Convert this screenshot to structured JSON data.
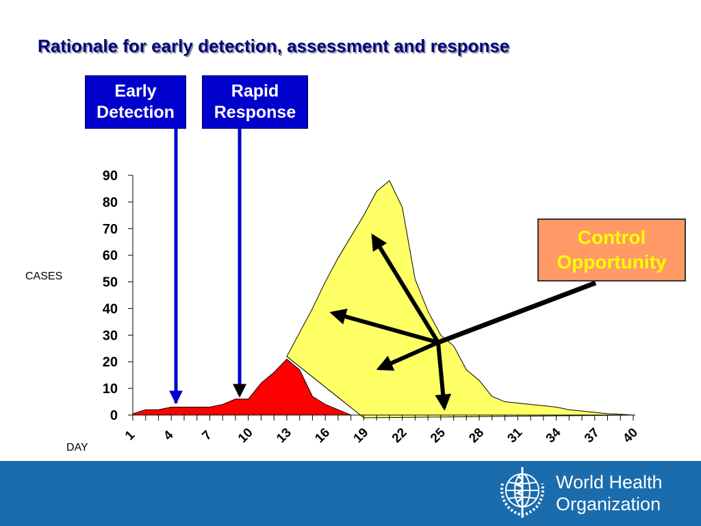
{
  "slide": {
    "title": "Rationale for early detection, assessment and response"
  },
  "callouts": {
    "early_detection": [
      "Early",
      "Detection"
    ],
    "rapid_response": [
      "Rapid",
      "Response"
    ],
    "control_opportunity": [
      "Control",
      "Opportunity"
    ]
  },
  "footer": {
    "org_name": [
      "World Health",
      "Organization"
    ],
    "bar_color": "#1a6cad"
  },
  "colors": {
    "title": "#000080",
    "red_area": "#ff0000",
    "yellow_area": "#ffff66",
    "blue_arrow": "#0000cc",
    "box_fill": "#0000cc",
    "control_box_fill": "#ff9966",
    "control_box_text": "#ffff00"
  },
  "chart_data": {
    "type": "area",
    "ylabel": "CASES",
    "xlabel": "DAY",
    "ylim": [
      0,
      90
    ],
    "yticks": [
      0,
      10,
      20,
      30,
      40,
      50,
      60,
      70,
      80,
      90
    ],
    "xlim": [
      1,
      40
    ],
    "xtick_labels": [
      "1",
      "4",
      "7",
      "10",
      "13",
      "16",
      "19",
      "22",
      "25",
      "28",
      "31",
      "34",
      "37",
      "40"
    ],
    "grid": false,
    "series": [
      {
        "name": "",
        "color": "#ff0000",
        "x": [
          1,
          2,
          3,
          4,
          5,
          6,
          7,
          8,
          9,
          10,
          11,
          12,
          13,
          14,
          15,
          16,
          17,
          18,
          19
        ],
        "y": [
          0.5,
          2,
          2,
          3,
          3,
          3,
          3,
          4,
          6,
          6,
          12,
          16,
          21,
          17,
          7,
          4,
          2,
          0,
          0
        ]
      },
      {
        "name": "",
        "color": "#ffff66",
        "x": [
          13,
          14,
          15,
          16,
          17,
          18,
          19,
          20,
          21,
          22,
          23,
          24,
          25,
          26,
          27,
          28,
          29,
          30,
          31,
          32,
          33,
          34,
          35,
          36,
          37,
          38,
          39,
          40
        ],
        "y": [
          22,
          31,
          40,
          50,
          59,
          67,
          75,
          84,
          88,
          78,
          51,
          39,
          30,
          26,
          17,
          13,
          7,
          5,
          4.5,
          4,
          3.5,
          3,
          2,
          1.5,
          1,
          0.5,
          0.3,
          0
        ]
      }
    ],
    "annotations": [
      {
        "type": "arrow",
        "label": "Early Detection",
        "x": 5,
        "y": 3
      },
      {
        "type": "arrow",
        "label": "Rapid Response",
        "x": 9,
        "y": 6
      }
    ]
  }
}
